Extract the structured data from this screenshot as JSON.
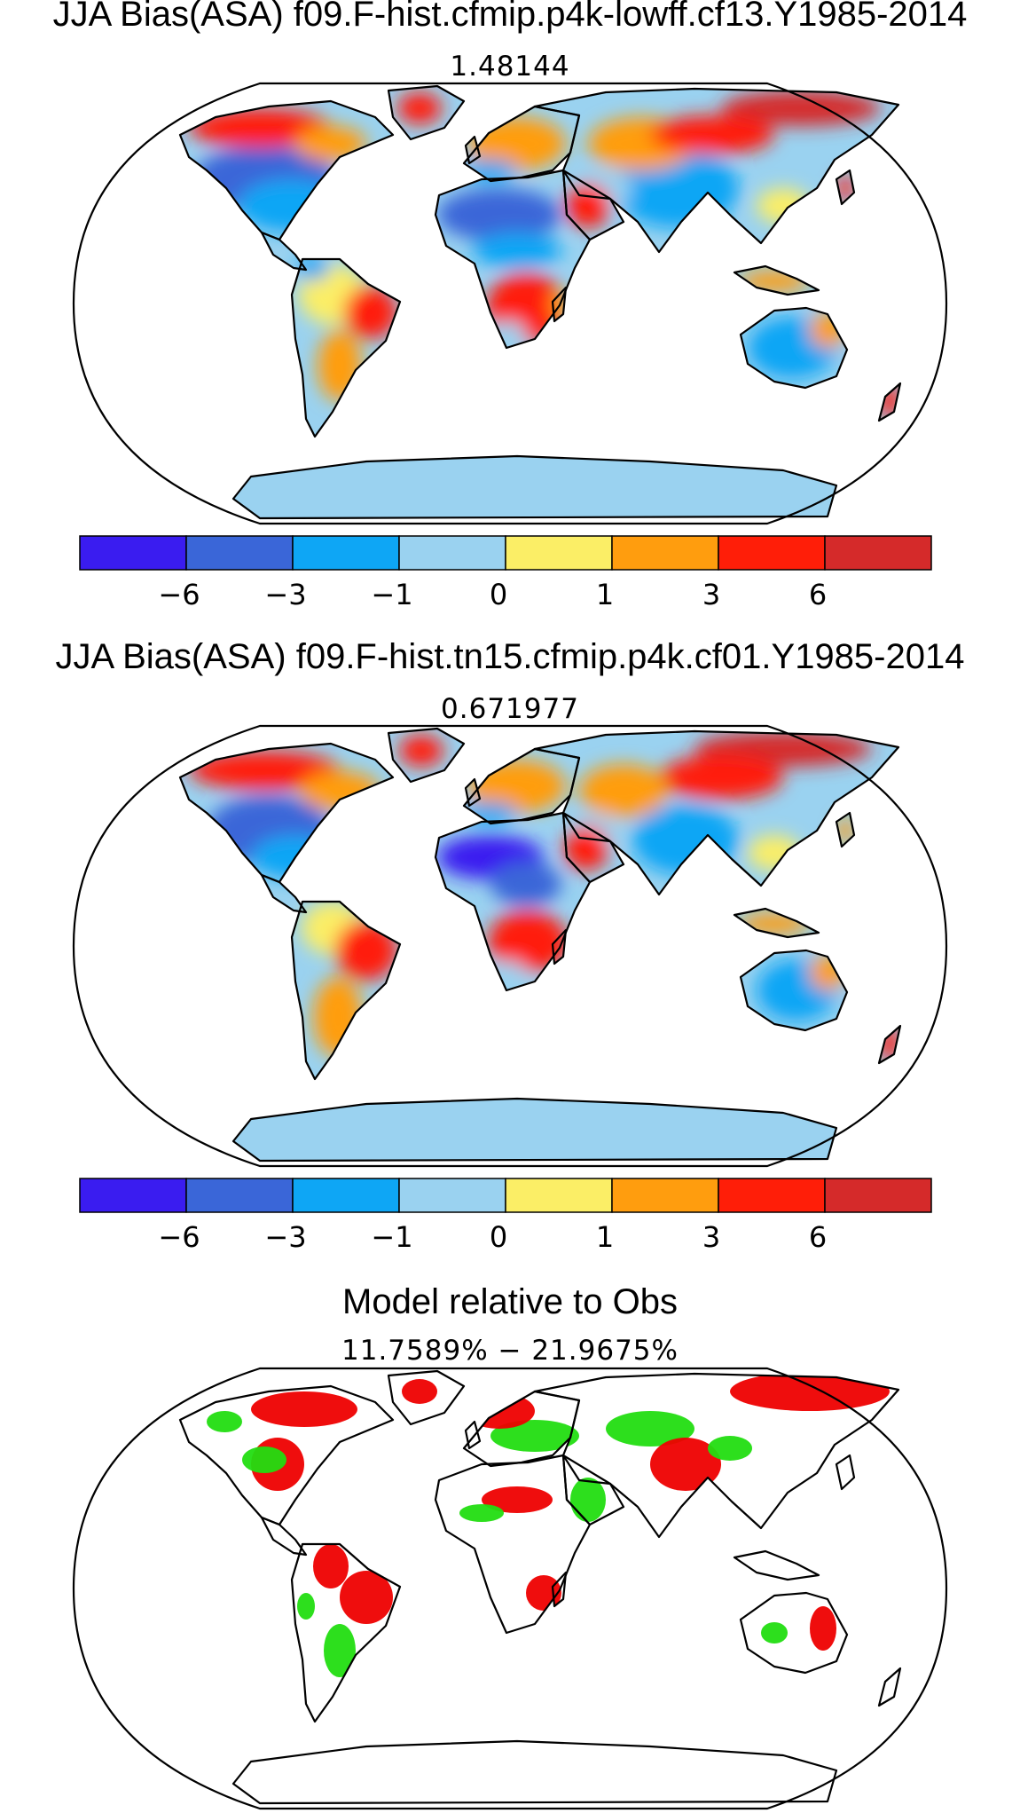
{
  "panels": [
    {
      "title": "JJA Bias(ASA) f09.F-hist.cfmip.p4k-lowff.cf13.Y1985-2014",
      "subtitle": "1.48144",
      "kind": "bias"
    },
    {
      "title": "JJA Bias(ASA) f09.F-hist.tn15.cfmip.p4k.cf01.Y1985-2014",
      "subtitle": "0.671977",
      "kind": "bias"
    },
    {
      "title": "Model relative to Obs",
      "subtitle": "11.7589% − 21.9675%",
      "kind": "relative"
    }
  ],
  "colorbar": {
    "colors": [
      "#3a1cf0",
      "#3a66d8",
      "#0ea6f5",
      "#9ad2f0",
      "#fbee66",
      "#ff9d0e",
      "#ff1e08",
      "#d52a2a"
    ],
    "tick_labels": [
      "−6",
      "−3",
      "−1",
      "0",
      "1",
      "3",
      "6"
    ]
  },
  "relative_colors": {
    "better": "#22dd11",
    "worse": "#ee0000"
  }
}
